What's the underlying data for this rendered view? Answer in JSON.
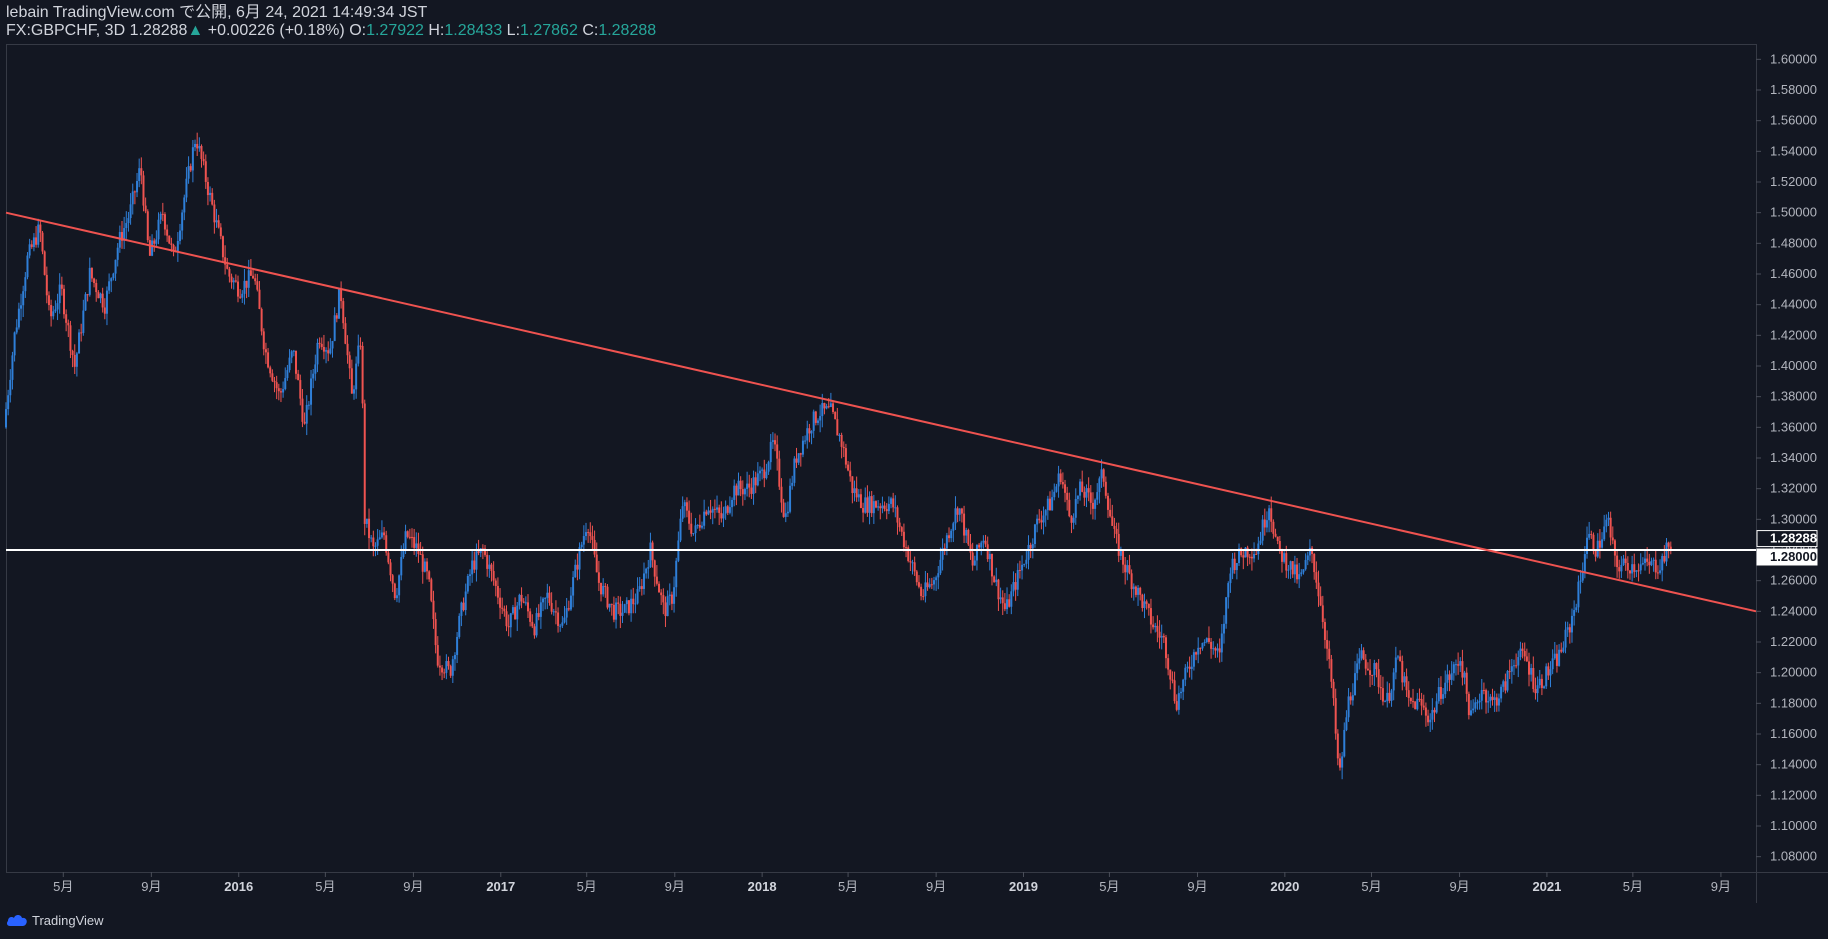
{
  "header": {
    "publish_line": "lebain TradingView.com で公開, 6月 24, 2021 14:49:34 JST",
    "symbol": "FX:GBPCHF, 3D",
    "last": "1.28288",
    "change_arrow": "▲",
    "change": "+0.00226 (+0.18%)",
    "o_label": "O:",
    "o_value": "1.27922",
    "h_label": "H:",
    "h_value": "1.28433",
    "l_label": "L:",
    "l_value": "1.27862",
    "c_label": "C:",
    "c_value": "1.28288"
  },
  "footer": {
    "brand": "TradingView",
    "logo_icon": "tradingview-cloud-icon"
  },
  "colors": {
    "background": "#131722",
    "up": "#2f7fd8",
    "down": "#ef5350",
    "trendline": "#ef5350",
    "hline": "#ffffff",
    "axis_text": "#b2b5be"
  },
  "chart_data": {
    "type": "candlestick",
    "symbol": "FX:GBPCHF",
    "timeframe": "3D",
    "ylim": [
      1.07,
      1.61
    ],
    "y_ticks": [
      "1.60000",
      "1.58000",
      "1.56000",
      "1.54000",
      "1.52000",
      "1.50000",
      "1.48000",
      "1.46000",
      "1.44000",
      "1.42000",
      "1.40000",
      "1.38000",
      "1.36000",
      "1.34000",
      "1.32000",
      "1.30000",
      "1.28000",
      "1.26000",
      "1.24000",
      "1.22000",
      "1.20000",
      "1.18000",
      "1.16000",
      "1.14000",
      "1.12000",
      "1.10000",
      "1.08000"
    ],
    "x_ticks": [
      {
        "label": "5月",
        "date": "2015-05-01",
        "bold": false
      },
      {
        "label": "9月",
        "date": "2015-09-01",
        "bold": false
      },
      {
        "label": "2016",
        "date": "2016-01-01",
        "bold": true
      },
      {
        "label": "5月",
        "date": "2016-05-01",
        "bold": false
      },
      {
        "label": "9月",
        "date": "2016-09-01",
        "bold": false
      },
      {
        "label": "2017",
        "date": "2017-01-01",
        "bold": true
      },
      {
        "label": "5月",
        "date": "2017-05-01",
        "bold": false
      },
      {
        "label": "9月",
        "date": "2017-09-01",
        "bold": false
      },
      {
        "label": "2018",
        "date": "2018-01-01",
        "bold": true
      },
      {
        "label": "5月",
        "date": "2018-05-01",
        "bold": false
      },
      {
        "label": "9月",
        "date": "2018-09-01",
        "bold": false
      },
      {
        "label": "2019",
        "date": "2019-01-01",
        "bold": true
      },
      {
        "label": "5月",
        "date": "2019-05-01",
        "bold": false
      },
      {
        "label": "9月",
        "date": "2019-09-01",
        "bold": false
      },
      {
        "label": "2020",
        "date": "2020-01-01",
        "bold": true
      },
      {
        "label": "5月",
        "date": "2020-05-01",
        "bold": false
      },
      {
        "label": "9月",
        "date": "2020-09-01",
        "bold": false
      },
      {
        "label": "2021",
        "date": "2021-01-01",
        "bold": true
      },
      {
        "label": "5月",
        "date": "2021-05-01",
        "bold": false
      },
      {
        "label": "9月",
        "date": "2021-09-01",
        "bold": false
      }
    ],
    "xlim": [
      "2015-02-10",
      "2021-10-20"
    ],
    "price_path": [
      [
        "2015-02-10",
        1.36
      ],
      [
        "2015-02-25",
        1.42
      ],
      [
        "2015-03-15",
        1.47
      ],
      [
        "2015-04-01",
        1.49
      ],
      [
        "2015-04-15",
        1.43
      ],
      [
        "2015-05-01",
        1.45
      ],
      [
        "2015-05-20",
        1.4
      ],
      [
        "2015-06-10",
        1.46
      ],
      [
        "2015-07-01",
        1.44
      ],
      [
        "2015-07-20",
        1.48
      ],
      [
        "2015-08-05",
        1.5
      ],
      [
        "2015-08-20",
        1.53
      ],
      [
        "2015-09-01",
        1.47
      ],
      [
        "2015-09-20",
        1.5
      ],
      [
        "2015-10-05",
        1.47
      ],
      [
        "2015-10-20",
        1.51
      ],
      [
        "2015-11-05",
        1.55
      ],
      [
        "2015-11-20",
        1.52
      ],
      [
        "2015-12-05",
        1.49
      ],
      [
        "2015-12-20",
        1.46
      ],
      [
        "2016-01-05",
        1.45
      ],
      [
        "2016-01-25",
        1.46
      ],
      [
        "2016-02-10",
        1.41
      ],
      [
        "2016-03-01",
        1.38
      ],
      [
        "2016-03-20",
        1.41
      ],
      [
        "2016-04-05",
        1.36
      ],
      [
        "2016-04-25",
        1.42
      ],
      [
        "2016-05-10",
        1.41
      ],
      [
        "2016-05-25",
        1.45
      ],
      [
        "2016-06-10",
        1.38
      ],
      [
        "2016-06-23",
        1.42
      ],
      [
        "2016-06-28",
        1.3
      ],
      [
        "2016-07-10",
        1.28
      ],
      [
        "2016-07-25",
        1.29
      ],
      [
        "2016-08-10",
        1.25
      ],
      [
        "2016-08-25",
        1.29
      ],
      [
        "2016-09-10",
        1.28
      ],
      [
        "2016-09-25",
        1.26
      ],
      [
        "2016-10-07",
        1.21
      ],
      [
        "2016-10-25",
        1.2
      ],
      [
        "2016-11-10",
        1.24
      ],
      [
        "2016-11-25",
        1.27
      ],
      [
        "2016-12-10",
        1.28
      ],
      [
        "2016-12-25",
        1.26
      ],
      [
        "2017-01-15",
        1.23
      ],
      [
        "2017-02-01",
        1.25
      ],
      [
        "2017-02-20",
        1.23
      ],
      [
        "2017-03-10",
        1.25
      ],
      [
        "2017-04-01",
        1.23
      ],
      [
        "2017-04-20",
        1.27
      ],
      [
        "2017-05-05",
        1.3
      ],
      [
        "2017-05-20",
        1.26
      ],
      [
        "2017-06-10",
        1.24
      ],
      [
        "2017-06-25",
        1.24
      ],
      [
        "2017-07-15",
        1.25
      ],
      [
        "2017-08-01",
        1.28
      ],
      [
        "2017-08-20",
        1.24
      ],
      [
        "2017-09-01",
        1.25
      ],
      [
        "2017-09-15",
        1.31
      ],
      [
        "2017-10-01",
        1.29
      ],
      [
        "2017-10-20",
        1.31
      ],
      [
        "2017-11-10",
        1.3
      ],
      [
        "2017-11-25",
        1.32
      ],
      [
        "2017-12-15",
        1.32
      ],
      [
        "2018-01-05",
        1.33
      ],
      [
        "2018-01-20",
        1.35
      ],
      [
        "2018-02-05",
        1.3
      ],
      [
        "2018-02-20",
        1.34
      ],
      [
        "2018-03-10",
        1.36
      ],
      [
        "2018-03-25",
        1.37
      ],
      [
        "2018-04-10",
        1.37
      ],
      [
        "2018-04-25",
        1.35
      ],
      [
        "2018-05-10",
        1.32
      ],
      [
        "2018-05-25",
        1.31
      ],
      [
        "2018-06-15",
        1.31
      ],
      [
        "2018-07-05",
        1.31
      ],
      [
        "2018-07-25",
        1.28
      ],
      [
        "2018-08-15",
        1.25
      ],
      [
        "2018-09-01",
        1.26
      ],
      [
        "2018-09-20",
        1.29
      ],
      [
        "2018-10-05",
        1.31
      ],
      [
        "2018-10-25",
        1.27
      ],
      [
        "2018-11-10",
        1.29
      ],
      [
        "2018-11-25",
        1.26
      ],
      [
        "2018-12-10",
        1.24
      ],
      [
        "2018-12-25",
        1.26
      ],
      [
        "2019-01-10",
        1.28
      ],
      [
        "2019-01-25",
        1.3
      ],
      [
        "2019-02-10",
        1.31
      ],
      [
        "2019-02-25",
        1.33
      ],
      [
        "2019-03-10",
        1.3
      ],
      [
        "2019-03-25",
        1.32
      ],
      [
        "2019-04-10",
        1.31
      ],
      [
        "2019-04-25",
        1.33
      ],
      [
        "2019-05-10",
        1.29
      ],
      [
        "2019-05-25",
        1.27
      ],
      [
        "2019-06-15",
        1.25
      ],
      [
        "2019-07-05",
        1.23
      ],
      [
        "2019-07-20",
        1.22
      ],
      [
        "2019-08-05",
        1.18
      ],
      [
        "2019-08-20",
        1.2
      ],
      [
        "2019-09-05",
        1.22
      ],
      [
        "2019-09-20",
        1.22
      ],
      [
        "2019-10-05",
        1.21
      ],
      [
        "2019-10-20",
        1.27
      ],
      [
        "2019-11-10",
        1.28
      ],
      [
        "2019-11-25",
        1.28
      ],
      [
        "2019-12-13",
        1.31
      ],
      [
        "2019-12-25",
        1.28
      ],
      [
        "2020-01-10",
        1.27
      ],
      [
        "2020-01-25",
        1.26
      ],
      [
        "2020-02-10",
        1.28
      ],
      [
        "2020-02-25",
        1.24
      ],
      [
        "2020-03-10",
        1.19
      ],
      [
        "2020-03-20",
        1.13
      ],
      [
        "2020-04-01",
        1.18
      ],
      [
        "2020-04-20",
        1.21
      ],
      [
        "2020-05-10",
        1.2
      ],
      [
        "2020-05-25",
        1.18
      ],
      [
        "2020-06-10",
        1.21
      ],
      [
        "2020-06-25",
        1.18
      ],
      [
        "2020-07-10",
        1.18
      ],
      [
        "2020-07-25",
        1.17
      ],
      [
        "2020-08-10",
        1.19
      ],
      [
        "2020-08-25",
        1.2
      ],
      [
        "2020-09-05",
        1.21
      ],
      [
        "2020-09-20",
        1.17
      ],
      [
        "2020-10-05",
        1.19
      ],
      [
        "2020-10-20",
        1.18
      ],
      [
        "2020-11-05",
        1.19
      ],
      [
        "2020-11-20",
        1.21
      ],
      [
        "2020-12-05",
        1.21
      ],
      [
        "2020-12-20",
        1.19
      ],
      [
        "2021-01-05",
        1.2
      ],
      [
        "2021-01-20",
        1.21
      ],
      [
        "2021-02-05",
        1.23
      ],
      [
        "2021-02-20",
        1.26
      ],
      [
        "2021-03-01",
        1.29
      ],
      [
        "2021-03-15",
        1.28
      ],
      [
        "2021-03-30",
        1.3
      ],
      [
        "2021-04-10",
        1.27
      ],
      [
        "2021-04-25",
        1.27
      ],
      [
        "2021-05-10",
        1.27
      ],
      [
        "2021-05-25",
        1.27
      ],
      [
        "2021-06-10",
        1.27
      ],
      [
        "2021-06-24",
        1.28288
      ]
    ],
    "trendline": {
      "x1": "2015-02-10",
      "y1": 1.5,
      "x2": "2021-10-20",
      "y2": 1.24
    },
    "horizontal_line": 1.28,
    "price_labels": [
      {
        "value": "1.28288",
        "price": 1.28288,
        "style": "current"
      },
      {
        "value": "1.28000",
        "price": 1.28,
        "style": "line"
      }
    ]
  }
}
